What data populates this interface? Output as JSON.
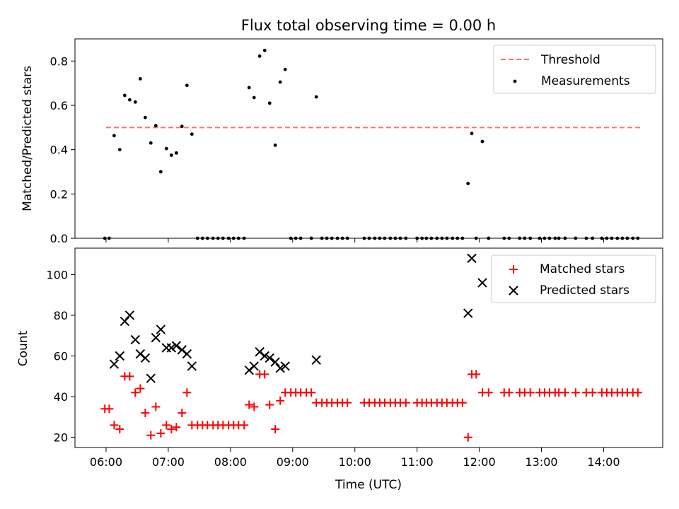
{
  "chart_data": [
    {
      "type": "scatter",
      "title": "Flux total observing time = 0.00 h",
      "xlabel": "",
      "ylabel": "Matched/Predicted stars",
      "ylim": [
        0,
        0.9
      ],
      "xlim_hours": [
        5.5,
        14.95
      ],
      "y_ticks": [
        0.0,
        0.2,
        0.4,
        0.6,
        0.8
      ],
      "y_tick_labels": [
        "0.0",
        "0.2",
        "0.4",
        "0.6",
        "0.8"
      ],
      "x_ticks": [
        6,
        7,
        8,
        9,
        10,
        11,
        12,
        13,
        14
      ],
      "threshold": {
        "name": "Threshold",
        "value": 0.5,
        "x_range": [
          6.0,
          14.6
        ],
        "color": "#ff7070",
        "dash": true
      },
      "legend_position": "top-right",
      "series": [
        {
          "name": "Measurements",
          "color": "#000000",
          "marker": "dot",
          "points": [
            [
              5.98,
              0
            ],
            [
              6.05,
              0
            ],
            [
              6.13,
              0.463
            ],
            [
              6.22,
              0.4
            ],
            [
              6.3,
              0.645
            ],
            [
              6.38,
              0.625
            ],
            [
              6.47,
              0.615
            ],
            [
              6.55,
              0.72
            ],
            [
              6.63,
              0.545
            ],
            [
              6.72,
              0.43
            ],
            [
              6.8,
              0.508
            ],
            [
              6.88,
              0.3
            ],
            [
              6.97,
              0.405
            ],
            [
              7.05,
              0.375
            ],
            [
              7.13,
              0.385
            ],
            [
              7.22,
              0.505
            ],
            [
              7.3,
              0.69
            ],
            [
              7.38,
              0.47
            ],
            [
              7.47,
              0
            ],
            [
              7.55,
              0
            ],
            [
              7.63,
              0
            ],
            [
              7.72,
              0
            ],
            [
              7.8,
              0
            ],
            [
              7.88,
              0
            ],
            [
              7.97,
              0
            ],
            [
              8.05,
              0
            ],
            [
              8.13,
              0
            ],
            [
              8.22,
              0
            ],
            [
              8.3,
              0.68
            ],
            [
              8.38,
              0.635
            ],
            [
              8.47,
              0.822
            ],
            [
              8.55,
              0.848
            ],
            [
              8.63,
              0.61
            ],
            [
              8.72,
              0.42
            ],
            [
              8.8,
              0.705
            ],
            [
              8.88,
              0.762
            ],
            [
              8.97,
              0
            ],
            [
              9.05,
              0
            ],
            [
              9.13,
              0
            ],
            [
              9.3,
              0
            ],
            [
              9.38,
              0.638
            ],
            [
              9.47,
              0
            ],
            [
              9.55,
              0
            ],
            [
              9.63,
              0
            ],
            [
              9.72,
              0
            ],
            [
              9.8,
              0
            ],
            [
              9.88,
              0
            ],
            [
              10.15,
              0
            ],
            [
              10.23,
              0
            ],
            [
              10.32,
              0
            ],
            [
              10.4,
              0
            ],
            [
              10.48,
              0
            ],
            [
              10.57,
              0
            ],
            [
              10.65,
              0
            ],
            [
              10.73,
              0
            ],
            [
              10.82,
              0
            ],
            [
              11.0,
              0
            ],
            [
              11.08,
              0
            ],
            [
              11.15,
              0
            ],
            [
              11.23,
              0
            ],
            [
              11.32,
              0
            ],
            [
              11.4,
              0
            ],
            [
              11.48,
              0
            ],
            [
              11.57,
              0
            ],
            [
              11.65,
              0
            ],
            [
              11.73,
              0
            ],
            [
              11.82,
              0.247
            ],
            [
              11.88,
              0.473
            ],
            [
              11.95,
              0
            ],
            [
              12.05,
              0.437
            ],
            [
              12.15,
              0
            ],
            [
              12.4,
              0
            ],
            [
              12.48,
              0
            ],
            [
              12.65,
              0
            ],
            [
              12.73,
              0
            ],
            [
              12.82,
              0
            ],
            [
              12.97,
              0
            ],
            [
              13.05,
              0
            ],
            [
              13.13,
              0
            ],
            [
              13.22,
              0
            ],
            [
              13.28,
              0
            ],
            [
              13.38,
              0
            ],
            [
              13.55,
              0
            ],
            [
              13.72,
              0
            ],
            [
              13.82,
              0
            ],
            [
              13.97,
              0
            ],
            [
              14.05,
              0
            ],
            [
              14.13,
              0
            ],
            [
              14.22,
              0
            ],
            [
              14.3,
              0
            ],
            [
              14.38,
              0
            ],
            [
              14.47,
              0
            ],
            [
              14.55,
              0
            ]
          ]
        }
      ]
    },
    {
      "type": "scatter",
      "title": "",
      "xlabel": "Time (UTC)",
      "ylabel": "Count",
      "ylim": [
        15,
        113
      ],
      "xlim_hours": [
        5.5,
        14.95
      ],
      "y_ticks": [
        20,
        40,
        60,
        80,
        100
      ],
      "y_tick_labels": [
        "20",
        "40",
        "60",
        "80",
        "100"
      ],
      "x_ticks": [
        6,
        7,
        8,
        9,
        10,
        11,
        12,
        13,
        14
      ],
      "x_tick_labels": [
        "06:00",
        "07:00",
        "08:00",
        "09:00",
        "10:00",
        "11:00",
        "12:00",
        "13:00",
        "14:00"
      ],
      "legend_position": "top-right",
      "series": [
        {
          "name": "Matched stars",
          "color": "#ff0000",
          "marker": "plus",
          "points": [
            [
              5.98,
              34
            ],
            [
              6.05,
              34
            ],
            [
              6.13,
              26
            ],
            [
              6.22,
              24
            ],
            [
              6.3,
              50
            ],
            [
              6.38,
              50
            ],
            [
              6.47,
              42
            ],
            [
              6.55,
              44
            ],
            [
              6.63,
              32
            ],
            [
              6.72,
              21
            ],
            [
              6.8,
              35
            ],
            [
              6.88,
              22
            ],
            [
              6.97,
              26
            ],
            [
              7.05,
              24
            ],
            [
              7.13,
              25
            ],
            [
              7.22,
              32
            ],
            [
              7.3,
              42
            ],
            [
              7.38,
              26
            ],
            [
              7.47,
              26
            ],
            [
              7.55,
              26
            ],
            [
              7.63,
              26
            ],
            [
              7.72,
              26
            ],
            [
              7.8,
              26
            ],
            [
              7.88,
              26
            ],
            [
              7.97,
              26
            ],
            [
              8.05,
              26
            ],
            [
              8.13,
              26
            ],
            [
              8.22,
              26
            ],
            [
              8.3,
              36
            ],
            [
              8.38,
              35
            ],
            [
              8.47,
              51
            ],
            [
              8.55,
              51
            ],
            [
              8.63,
              36
            ],
            [
              8.72,
              24
            ],
            [
              8.8,
              38
            ],
            [
              8.88,
              42
            ],
            [
              8.97,
              42
            ],
            [
              9.05,
              42
            ],
            [
              9.13,
              42
            ],
            [
              9.22,
              42
            ],
            [
              9.3,
              42
            ],
            [
              9.38,
              37
            ],
            [
              9.47,
              37
            ],
            [
              9.55,
              37
            ],
            [
              9.63,
              37
            ],
            [
              9.72,
              37
            ],
            [
              9.8,
              37
            ],
            [
              9.88,
              37
            ],
            [
              10.15,
              37
            ],
            [
              10.23,
              37
            ],
            [
              10.32,
              37
            ],
            [
              10.4,
              37
            ],
            [
              10.48,
              37
            ],
            [
              10.57,
              37
            ],
            [
              10.65,
              37
            ],
            [
              10.73,
              37
            ],
            [
              10.82,
              37
            ],
            [
              11.0,
              37
            ],
            [
              11.08,
              37
            ],
            [
              11.15,
              37
            ],
            [
              11.23,
              37
            ],
            [
              11.32,
              37
            ],
            [
              11.4,
              37
            ],
            [
              11.48,
              37
            ],
            [
              11.57,
              37
            ],
            [
              11.65,
              37
            ],
            [
              11.73,
              37
            ],
            [
              11.82,
              20
            ],
            [
              11.88,
              51
            ],
            [
              11.95,
              51
            ],
            [
              12.05,
              42
            ],
            [
              12.15,
              42
            ],
            [
              12.4,
              42
            ],
            [
              12.48,
              42
            ],
            [
              12.65,
              42
            ],
            [
              12.73,
              42
            ],
            [
              12.82,
              42
            ],
            [
              12.97,
              42
            ],
            [
              13.05,
              42
            ],
            [
              13.13,
              42
            ],
            [
              13.22,
              42
            ],
            [
              13.28,
              42
            ],
            [
              13.38,
              42
            ],
            [
              13.55,
              42
            ],
            [
              13.72,
              42
            ],
            [
              13.82,
              42
            ],
            [
              13.97,
              42
            ],
            [
              14.05,
              42
            ],
            [
              14.13,
              42
            ],
            [
              14.22,
              42
            ],
            [
              14.3,
              42
            ],
            [
              14.38,
              42
            ],
            [
              14.47,
              42
            ],
            [
              14.55,
              42
            ]
          ]
        },
        {
          "name": "Predicted stars",
          "color": "#000000",
          "marker": "x",
          "points": [
            [
              6.13,
              56
            ],
            [
              6.22,
              60
            ],
            [
              6.3,
              77
            ],
            [
              6.38,
              80
            ],
            [
              6.47,
              68
            ],
            [
              6.55,
              61
            ],
            [
              6.63,
              59
            ],
            [
              6.72,
              49
            ],
            [
              6.8,
              69
            ],
            [
              6.88,
              73
            ],
            [
              6.97,
              64
            ],
            [
              7.05,
              64
            ],
            [
              7.13,
              65
            ],
            [
              7.22,
              63
            ],
            [
              7.3,
              61
            ],
            [
              7.38,
              55
            ],
            [
              8.3,
              53
            ],
            [
              8.38,
              55
            ],
            [
              8.47,
              62
            ],
            [
              8.55,
              60
            ],
            [
              8.63,
              59
            ],
            [
              8.72,
              57
            ],
            [
              8.8,
              54
            ],
            [
              8.88,
              55
            ],
            [
              9.38,
              58
            ],
            [
              11.82,
              81
            ],
            [
              11.88,
              108
            ],
            [
              12.05,
              96
            ]
          ]
        }
      ]
    }
  ]
}
